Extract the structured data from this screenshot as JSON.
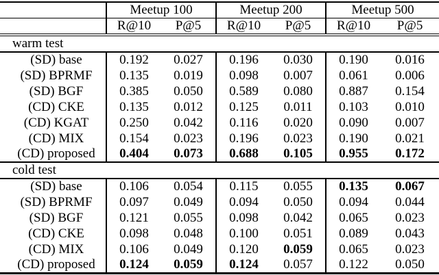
{
  "page": {
    "background_color": "#ffffff",
    "text_color": "#000000"
  },
  "table": {
    "corner_label": "",
    "groups": [
      {
        "label": "Meetup 100"
      },
      {
        "label": "Meetup 200"
      },
      {
        "label": "Meetup 500"
      }
    ],
    "metric_headers": [
      "R@10",
      "P@5",
      "R@10",
      "P@5",
      "R@10",
      "P@5"
    ],
    "sections": [
      {
        "label": "warm test",
        "rows": [
          {
            "method": "(SD) base",
            "values": [
              "0.192",
              "0.027",
              "0.196",
              "0.030",
              "0.190",
              "0.016"
            ],
            "bold": [
              false,
              false,
              false,
              false,
              false,
              false
            ]
          },
          {
            "method": "(SD) BPRMF",
            "values": [
              "0.135",
              "0.019",
              "0.098",
              "0.007",
              "0.061",
              "0.006"
            ],
            "bold": [
              false,
              false,
              false,
              false,
              false,
              false
            ]
          },
          {
            "method": "(SD) BGF",
            "values": [
              "0.385",
              "0.050",
              "0.589",
              "0.080",
              "0.887",
              "0.154"
            ],
            "bold": [
              false,
              false,
              false,
              false,
              false,
              false
            ]
          },
          {
            "method": "(CD) CKE",
            "values": [
              "0.135",
              "0.012",
              "0.125",
              "0.011",
              "0.103",
              "0.010"
            ],
            "bold": [
              false,
              false,
              false,
              false,
              false,
              false
            ]
          },
          {
            "method": "(CD) KGAT",
            "values": [
              "0.250",
              "0.042",
              "0.116",
              "0.020",
              "0.090",
              "0.007"
            ],
            "bold": [
              false,
              false,
              false,
              false,
              false,
              false
            ]
          },
          {
            "method": "(CD) MIX",
            "values": [
              "0.154",
              "0.023",
              "0.196",
              "0.023",
              "0.190",
              "0.021"
            ],
            "bold": [
              false,
              false,
              false,
              false,
              false,
              false
            ]
          },
          {
            "method": "(CD) proposed",
            "values": [
              "0.404",
              "0.073",
              "0.688",
              "0.105",
              "0.955",
              "0.172"
            ],
            "bold": [
              true,
              true,
              true,
              true,
              true,
              true
            ]
          }
        ]
      },
      {
        "label": "cold test",
        "rows": [
          {
            "method": "(SD) base",
            "values": [
              "0.106",
              "0.054",
              "0.115",
              "0.055",
              "0.135",
              "0.067"
            ],
            "bold": [
              false,
              false,
              false,
              false,
              true,
              true
            ]
          },
          {
            "method": "(SD) BPRMF",
            "values": [
              "0.097",
              "0.049",
              "0.094",
              "0.050",
              "0.094",
              "0.044"
            ],
            "bold": [
              false,
              false,
              false,
              false,
              false,
              false
            ]
          },
          {
            "method": "(SD) BGF",
            "values": [
              "0.121",
              "0.055",
              "0.098",
              "0.042",
              "0.065",
              "0.023"
            ],
            "bold": [
              false,
              false,
              false,
              false,
              false,
              false
            ]
          },
          {
            "method": "(CD) CKE",
            "values": [
              "0.098",
              "0.048",
              "0.100",
              "0.051",
              "0.089",
              "0.043"
            ],
            "bold": [
              false,
              false,
              false,
              false,
              false,
              false
            ]
          },
          {
            "method": "(CD) MIX",
            "values": [
              "0.106",
              "0.049",
              "0.120",
              "0.059",
              "0.065",
              "0.023"
            ],
            "bold": [
              false,
              false,
              false,
              true,
              false,
              false
            ]
          },
          {
            "method": "(CD) proposed",
            "values": [
              "0.124",
              "0.059",
              "0.124",
              "0.057",
              "0.122",
              "0.050"
            ],
            "bold": [
              true,
              true,
              true,
              false,
              false,
              false
            ]
          }
        ]
      }
    ]
  }
}
